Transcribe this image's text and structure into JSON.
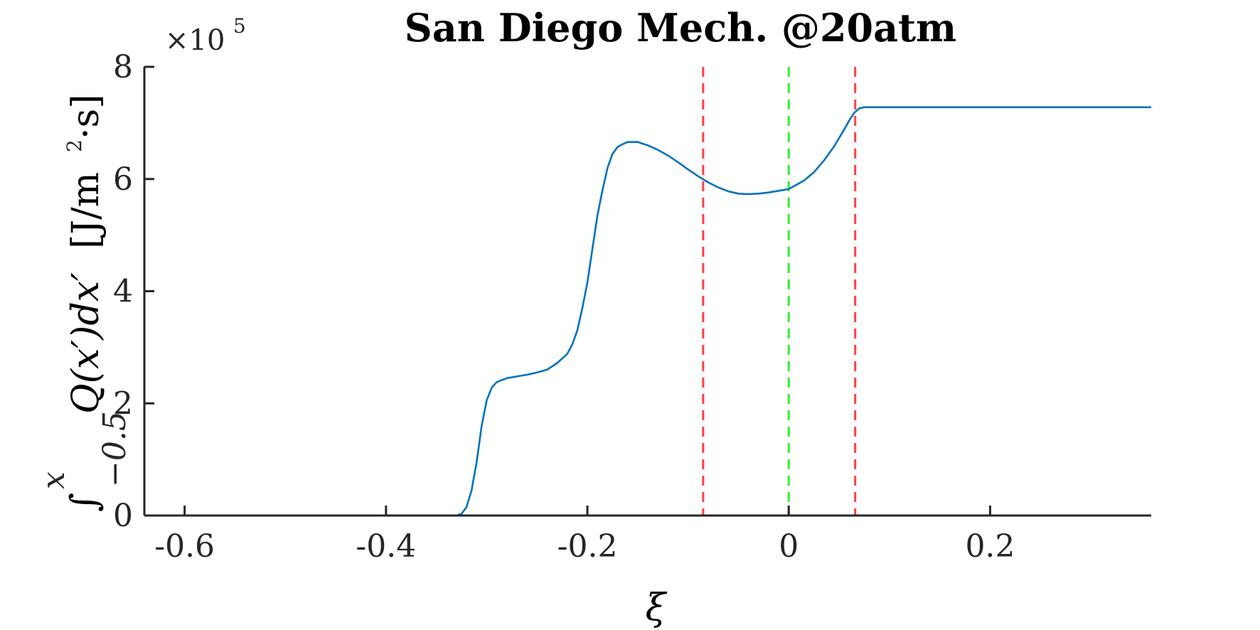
{
  "chart_data": {
    "type": "line",
    "title": "San Diego Mech. @20atm",
    "xlabel": "ξ",
    "ylabel_integral_upper": "x",
    "ylabel_integral_lower": "−0.5",
    "ylabel_integrand": "Q(x′)dx′",
    "ylabel_unit_open": "[J/m",
    "ylabel_unit_power": "2",
    "ylabel_unit_close": "·s]",
    "y_multiplier_base": "×10",
    "y_multiplier_exp": "5",
    "xlim": [
      -0.64,
      0.36
    ],
    "ylim": [
      0,
      8
    ],
    "x_ticks": [
      -0.6,
      -0.4,
      -0.2,
      0,
      0.2
    ],
    "x_tick_labels": [
      "-0.6",
      "-0.4",
      "-0.2",
      "0",
      "0.2"
    ],
    "y_ticks": [
      0,
      2,
      4,
      6,
      8
    ],
    "y_tick_labels": [
      "0",
      "2",
      "4",
      "6",
      "8"
    ],
    "grid": false,
    "series": [
      {
        "color": "#0072bd",
        "x": [
          -0.64,
          -0.5,
          -0.4,
          -0.35,
          -0.33,
          -0.325,
          -0.32,
          -0.315,
          -0.31,
          -0.305,
          -0.3,
          -0.295,
          -0.29,
          -0.28,
          -0.27,
          -0.26,
          -0.25,
          -0.24,
          -0.23,
          -0.22,
          -0.215,
          -0.21,
          -0.205,
          -0.2,
          -0.195,
          -0.19,
          -0.185,
          -0.18,
          -0.175,
          -0.17,
          -0.165,
          -0.16,
          -0.155,
          -0.15,
          -0.145,
          -0.14,
          -0.13,
          -0.12,
          -0.11,
          -0.1,
          -0.09,
          -0.08,
          -0.07,
          -0.06,
          -0.05,
          -0.04,
          -0.03,
          -0.02,
          -0.01,
          0.0,
          0.005,
          0.015,
          0.025,
          0.035,
          0.045,
          0.055,
          0.06,
          0.065,
          0.07,
          0.075,
          0.08,
          0.09,
          0.1,
          0.2,
          0.36
        ],
        "y": [
          0,
          0,
          0,
          0,
          0,
          0.03,
          0.15,
          0.45,
          0.95,
          1.6,
          2.05,
          2.28,
          2.38,
          2.45,
          2.48,
          2.51,
          2.55,
          2.6,
          2.72,
          2.88,
          3.05,
          3.3,
          3.7,
          4.15,
          4.75,
          5.35,
          5.8,
          6.2,
          6.45,
          6.57,
          6.62,
          6.66,
          6.66,
          6.66,
          6.63,
          6.6,
          6.52,
          6.42,
          6.3,
          6.17,
          6.05,
          5.94,
          5.85,
          5.78,
          5.74,
          5.73,
          5.74,
          5.76,
          5.79,
          5.82,
          5.87,
          5.97,
          6.12,
          6.33,
          6.58,
          6.88,
          7.04,
          7.18,
          7.26,
          7.28,
          7.28,
          7.28,
          7.28,
          7.28,
          7.28
        ]
      }
    ],
    "vertical_lines": [
      {
        "x": -0.085,
        "color": "#ff4040",
        "style": "dashed"
      },
      {
        "x": 0.0,
        "color": "#33ee33",
        "style": "dashed"
      },
      {
        "x": 0.066,
        "color": "#ff4040",
        "style": "dashed"
      }
    ]
  }
}
